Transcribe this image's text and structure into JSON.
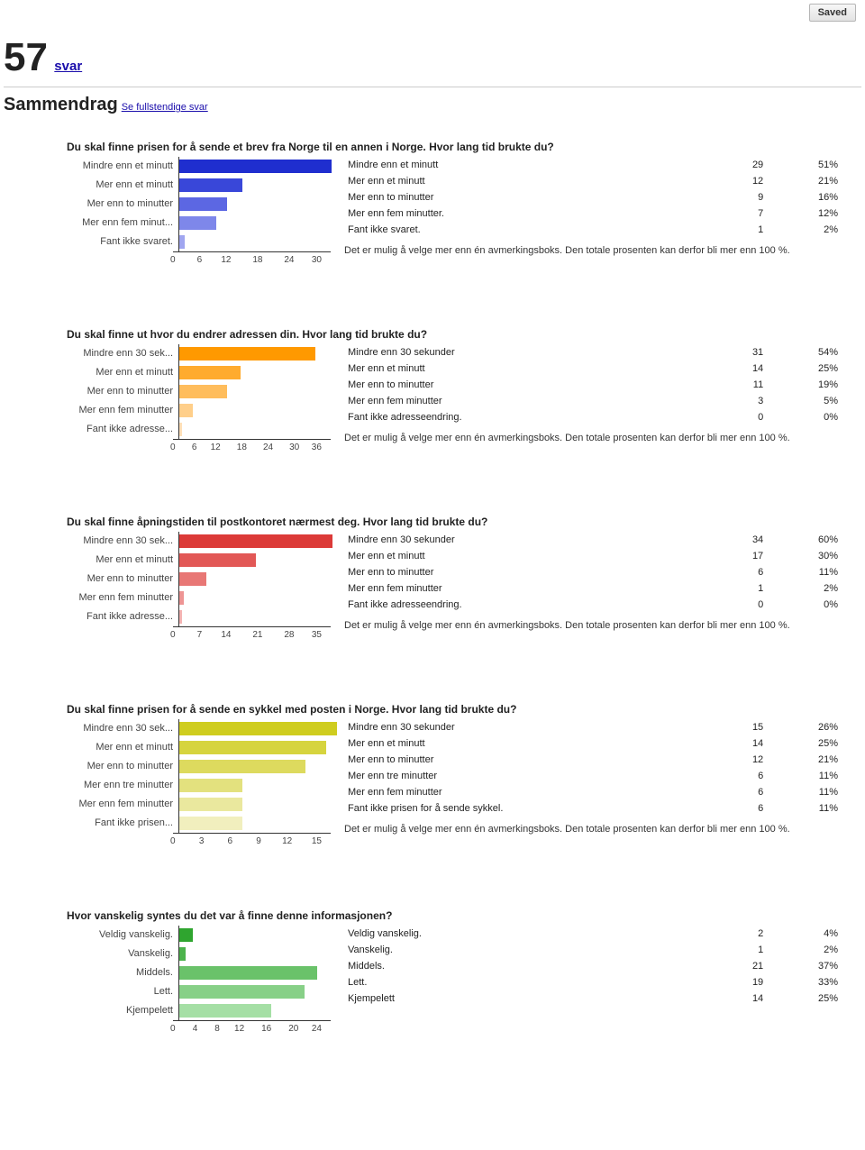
{
  "saved_label": "Saved",
  "response_count": "57",
  "svar_label": "svar",
  "summary_heading": "Sammendrag",
  "full_responses_link": "Se fullstendige svar",
  "multi_note": "Det er mulig å velge mer enn én avmerkingsboks. Den totale prosenten kan derfor bli mer enn 100&nbsp;%.",
  "questions": [
    {
      "title": "Du skal finne prisen for å sende et brev fra Norge til en annen i Norge. Hvor lang tid brukte du?",
      "x_max": 30,
      "x_step": 6,
      "colors": [
        "#1f2ecf",
        "#3947d9",
        "#5c67e3",
        "#7e87ea",
        "#a0a6f0"
      ],
      "has_note": true,
      "rows": [
        {
          "label": "Mindre enn et minutt",
          "short": "Mindre enn et minutt",
          "count": 29,
          "pct": "51%"
        },
        {
          "label": "Mer enn et minutt",
          "short": "Mer enn et minutt",
          "count": 12,
          "pct": "21%"
        },
        {
          "label": "Mer enn to minutter",
          "short": "Mer enn to minutter",
          "count": 9,
          "pct": "16%"
        },
        {
          "label": "Mer enn fem minutter.",
          "short": "Mer enn fem minut...",
          "count": 7,
          "pct": "12%"
        },
        {
          "label": "Fant ikke svaret.",
          "short": "Fant ikke svaret.",
          "count": 1,
          "pct": "2%"
        }
      ]
    },
    {
      "title": "Du skal finne ut hvor du endrer adressen din. Hvor lang tid brukte du?",
      "x_max": 36,
      "x_step": 6,
      "colors": [
        "#ff9900",
        "#ffab2e",
        "#ffbd5c",
        "#ffcf8a",
        "#ffe0b8"
      ],
      "has_note": true,
      "rows": [
        {
          "label": "Mindre enn 30 sekunder",
          "short": "Mindre enn 30 sek...",
          "count": 31,
          "pct": "54%"
        },
        {
          "label": "Mer enn et minutt",
          "short": "Mer enn et minutt",
          "count": 14,
          "pct": "25%"
        },
        {
          "label": "Mer enn to minutter",
          "short": "Mer enn to minutter",
          "count": 11,
          "pct": "19%"
        },
        {
          "label": "Mer enn fem minutter",
          "short": "Mer enn fem minutter",
          "count": 3,
          "pct": "5%"
        },
        {
          "label": "Fant ikke adresseendring.",
          "short": "Fant ikke adresse...",
          "count": 0,
          "pct": "0%"
        }
      ]
    },
    {
      "title": "Du skal finne åpningstiden til postkontoret nærmest deg. Hvor lang tid brukte du?",
      "x_max": 35,
      "x_step": 7,
      "colors": [
        "#dc3a38",
        "#e25856",
        "#e87775",
        "#ee9594",
        "#f4b3b2"
      ],
      "has_note": true,
      "rows": [
        {
          "label": "Mindre enn 30 sekunder",
          "short": "Mindre enn 30 sek...",
          "count": 34,
          "pct": "60%"
        },
        {
          "label": "Mer enn et minutt",
          "short": "Mer enn et minutt",
          "count": 17,
          "pct": "30%"
        },
        {
          "label": "Mer enn to minutter",
          "short": "Mer enn to minutter",
          "count": 6,
          "pct": "11%"
        },
        {
          "label": "Mer enn fem minutter",
          "short": "Mer enn fem minutter",
          "count": 1,
          "pct": "2%"
        },
        {
          "label": "Fant ikke adresseendring.",
          "short": "Fant ikke adresse...",
          "count": 0,
          "pct": "0%"
        }
      ]
    },
    {
      "title": "Du skal finne prisen for å sende en sykkel med posten i Norge. Hvor lang tid brukte du?",
      "x_max": 15,
      "x_step": 3,
      "colors": [
        "#cfcd1f",
        "#d6d43e",
        "#ddda5e",
        "#e3e17e",
        "#eae89e",
        "#f1efbe"
      ],
      "has_note": true,
      "rows": [
        {
          "label": "Mindre enn 30 sekunder",
          "short": "Mindre enn 30 sek...",
          "count": 15,
          "pct": "26%"
        },
        {
          "label": "Mer enn et minutt",
          "short": "Mer enn et minutt",
          "count": 14,
          "pct": "25%"
        },
        {
          "label": "Mer enn to minutter",
          "short": "Mer enn to minutter",
          "count": 12,
          "pct": "21%"
        },
        {
          "label": "Mer enn tre minutter",
          "short": "Mer enn tre minutter",
          "count": 6,
          "pct": "11%"
        },
        {
          "label": "Mer enn fem minutter",
          "short": "Mer enn fem minutter",
          "count": 6,
          "pct": "11%"
        },
        {
          "label": "Fant ikke prisen for å sende sykkel.",
          "short": "Fant ikke prisen...",
          "count": 6,
          "pct": "11%"
        }
      ]
    },
    {
      "title": "Hvor vanskelig syntes du det var å finne denne informasjonen?",
      "x_max": 24,
      "x_step": 4,
      "colors": [
        "#2fa52f",
        "#4cb34c",
        "#6ac26a",
        "#87d087",
        "#a5dfa5"
      ],
      "has_note": false,
      "rows": [
        {
          "label": "Veldig vanskelig.",
          "short": "Veldig vanskelig.",
          "count": 2,
          "pct": "4%"
        },
        {
          "label": "Vanskelig.",
          "short": "Vanskelig.",
          "count": 1,
          "pct": "2%"
        },
        {
          "label": "Middels.",
          "short": "Middels.",
          "count": 21,
          "pct": "37%"
        },
        {
          "label": "Lett.",
          "short": "Lett.",
          "count": 19,
          "pct": "33%"
        },
        {
          "label": "Kjempelett",
          "short": "Kjempelett",
          "count": 14,
          "pct": "25%"
        }
      ]
    }
  ]
}
